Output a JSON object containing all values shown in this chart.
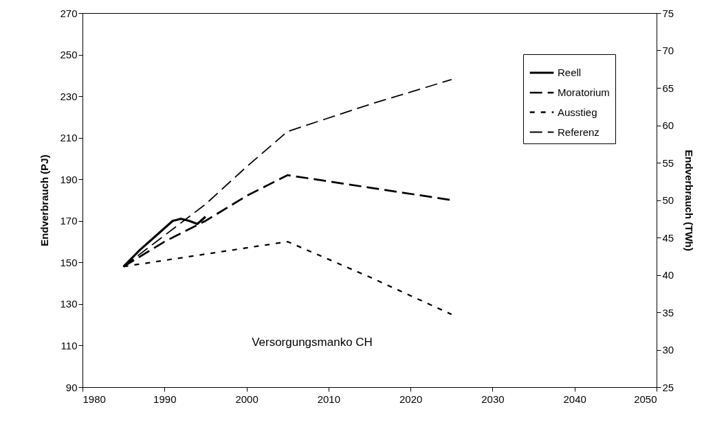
{
  "chart_data": {
    "type": "line",
    "xlabel": null,
    "ylabel": "Endverbrauch (PJ)",
    "y2label": "Endverbrauch (TWh)",
    "xlim": [
      1980,
      2050
    ],
    "xticks": [
      1980,
      1990,
      2000,
      2010,
      2020,
      2030,
      2040,
      2050
    ],
    "ylim": [
      90,
      270
    ],
    "yticks": [
      90,
      110,
      130,
      150,
      170,
      190,
      210,
      230,
      250,
      270
    ],
    "y2lim": [
      25,
      75
    ],
    "y2ticks": [
      25,
      30,
      35,
      40,
      45,
      50,
      55,
      60,
      65,
      70,
      75
    ],
    "grid": false,
    "legend": "top right",
    "marker": "none",
    "annotations": [
      "Versorgungsmanko CH"
    ],
    "series": [
      {
        "name": "Reell",
        "color": "#000000",
        "line_style": "solid",
        "x": [
          1985,
          1987,
          1989,
          1991,
          1992,
          1993,
          1994,
          1995
        ],
        "values": [
          148,
          156,
          163,
          170,
          171,
          170,
          168.5,
          172
        ]
      },
      {
        "name": "Moratorium",
        "color": "#000000",
        "line_style": "dashed",
        "x": [
          1985,
          1990,
          1995,
          2000,
          2005,
          2015,
          2025
        ],
        "values": [
          148,
          160,
          170,
          182,
          192,
          186,
          180
        ]
      },
      {
        "name": "Ausstieg",
        "color": "#000000",
        "line_style": "dotted",
        "x": [
          1985,
          1990,
          1995,
          2000,
          2005,
          2015,
          2025
        ],
        "values": [
          148,
          151,
          154,
          157,
          160,
          143,
          125
        ]
      },
      {
        "name": "Referenz",
        "color": "#000000",
        "line_style": "dashed",
        "x": [
          1985,
          1990,
          1995,
          2000,
          2005,
          2015,
          2025
        ],
        "values": [
          148,
          163,
          178,
          196,
          213,
          226,
          238
        ]
      }
    ]
  }
}
